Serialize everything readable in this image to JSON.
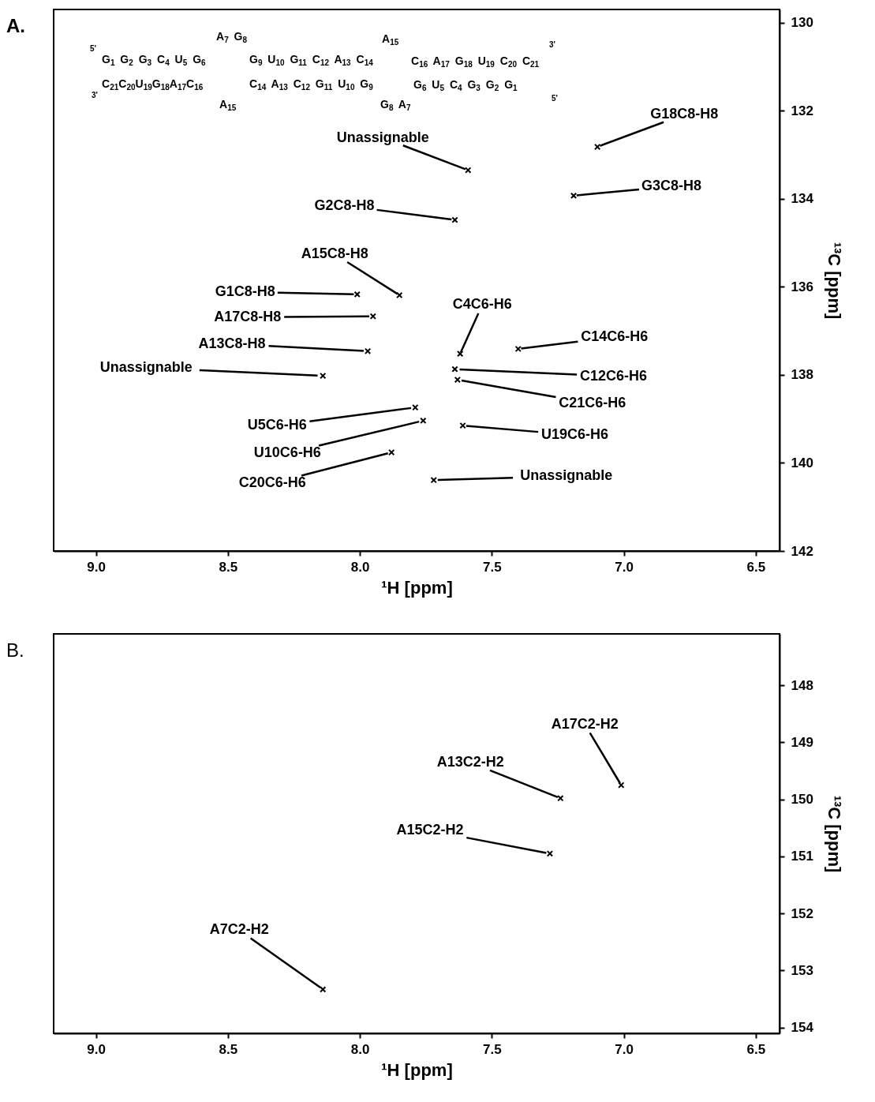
{
  "chart_data": [
    {
      "type": "scatter",
      "title": "A.",
      "xlabel": "¹H [ppm]",
      "ylabel": "¹³C [ppm]",
      "color": "#000000",
      "marker": "cross",
      "grid": false,
      "xlim": [
        9.16,
        6.41
      ],
      "ylim": [
        142,
        129.7
      ],
      "xticks": [
        {
          "value": 9,
          "label": "9.0"
        },
        8.5,
        {
          "value": 8,
          "label": "8.0"
        },
        7.5,
        {
          "value": 7,
          "label": "7.0"
        },
        6.5
      ],
      "yticks": [
        130,
        132,
        134,
        136,
        138,
        140,
        142
      ],
      "x": [
        7.1,
        7.19,
        7.59,
        7.64,
        7.85,
        8.01,
        7.95,
        7.97,
        8.14,
        7.62,
        7.4,
        7.64,
        7.63,
        7.79,
        7.76,
        7.61,
        7.88,
        7.72
      ],
      "values": [
        132.82,
        133.93,
        133.35,
        134.48,
        136.19,
        136.17,
        136.67,
        137.46,
        138.02,
        137.52,
        137.41,
        137.87,
        138.11,
        138.74,
        139.04,
        139.15,
        139.76,
        140.39
      ],
      "annotations": [
        {
          "text": "G18C8-H8",
          "x": 7.1,
          "y": 132.82
        },
        {
          "text": "G3C8-H8",
          "x": 7.19,
          "y": 133.93
        },
        {
          "text": "Unassignable",
          "x": 7.59,
          "y": 133.35
        },
        {
          "text": "G2C8-H8",
          "x": 7.64,
          "y": 134.48
        },
        {
          "text": "A15C8-H8",
          "x": 7.85,
          "y": 136.19
        },
        {
          "text": "G1C8-H8",
          "x": 8.01,
          "y": 136.17
        },
        {
          "text": "A17C8-H8",
          "x": 7.95,
          "y": 136.67
        },
        {
          "text": "A13C8-H8",
          "x": 7.97,
          "y": 137.46
        },
        {
          "text": "Unassignable",
          "x": 8.14,
          "y": 138.02
        },
        {
          "text": "C4C6-H6",
          "x": 7.62,
          "y": 137.52
        },
        {
          "text": "C14C6-H6",
          "x": 7.4,
          "y": 137.41
        },
        {
          "text": "C12C6-H6",
          "x": 7.64,
          "y": 137.87
        },
        {
          "text": "C21C6-H6",
          "x": 7.63,
          "y": 138.11
        },
        {
          "text": "U5C6-H6",
          "x": 7.79,
          "y": 138.74
        },
        {
          "text": "U10C6-H6",
          "x": 7.76,
          "y": 139.04
        },
        {
          "text": "U19C6-H6",
          "x": 7.61,
          "y": 139.15
        },
        {
          "text": "C20C6-H6",
          "x": 7.88,
          "y": 139.76
        },
        {
          "text": "Unassignable",
          "x": 7.72,
          "y": 140.39
        },
        "5'",
        "A$_{7}$ G$_{8}$",
        "A$_{15}$",
        "3'",
        "G$_{1}$ G$_{2}$ G$_{3}$ C$_{4}$ U$_{5}$ G$_{6}$",
        "G$_{9}$ U$_{10}$ G$_{11}$ C$_{12}$ A$_{13}$ C$_{14}$",
        "C$_{16}$ A$_{17}$ G$_{18}$ U$_{19}$ C$_{20}$ C$_{21}$",
        "C$_{21}$C$_{20}$U$_{19}$G$_{18}$A$_{17}$C$_{16}$",
        "C$_{14}$ A$_{13}$ C$_{12}$ G$_{11}$ U$_{10}$ G$_{9}$",
        "G$_{6}$ U$_{5}$ C$_{4}$ G$_{3}$ G$_{2}$ G$_{1}$",
        "3'",
        "A$_{15}$",
        "G$_{8}$ A$_{7}$",
        "5'"
      ]
    },
    {
      "type": "scatter",
      "title": "B.",
      "xlabel": "¹H [ppm]",
      "ylabel": "¹³C [ppm]",
      "color": "#000000",
      "marker": "cross",
      "grid": false,
      "xlim": [
        9.16,
        6.41
      ],
      "ylim": [
        154.1,
        147.1
      ],
      "xticks": [
        {
          "value": 9,
          "label": "9.0"
        },
        8.5,
        {
          "value": 8,
          "label": "8.0"
        },
        7.5,
        {
          "value": 7,
          "label": "7.0"
        },
        6.5
      ],
      "yticks": [
        148,
        149,
        150,
        151,
        152,
        153,
        154
      ],
      "x": [
        7.01,
        7.24,
        7.28,
        8.14
      ],
      "values": [
        149.75,
        149.98,
        150.95,
        153.33
      ],
      "annotations": [
        {
          "text": "A17C2-H2",
          "x": 7.01,
          "y": 149.75
        },
        {
          "text": "A13C2-H2",
          "x": 7.24,
          "y": 149.98
        },
        {
          "text": "A15C2-H2",
          "x": 7.28,
          "y": 150.95
        },
        {
          "text": "A7C2-H2",
          "x": 8.14,
          "y": 153.33
        }
      ]
    }
  ]
}
